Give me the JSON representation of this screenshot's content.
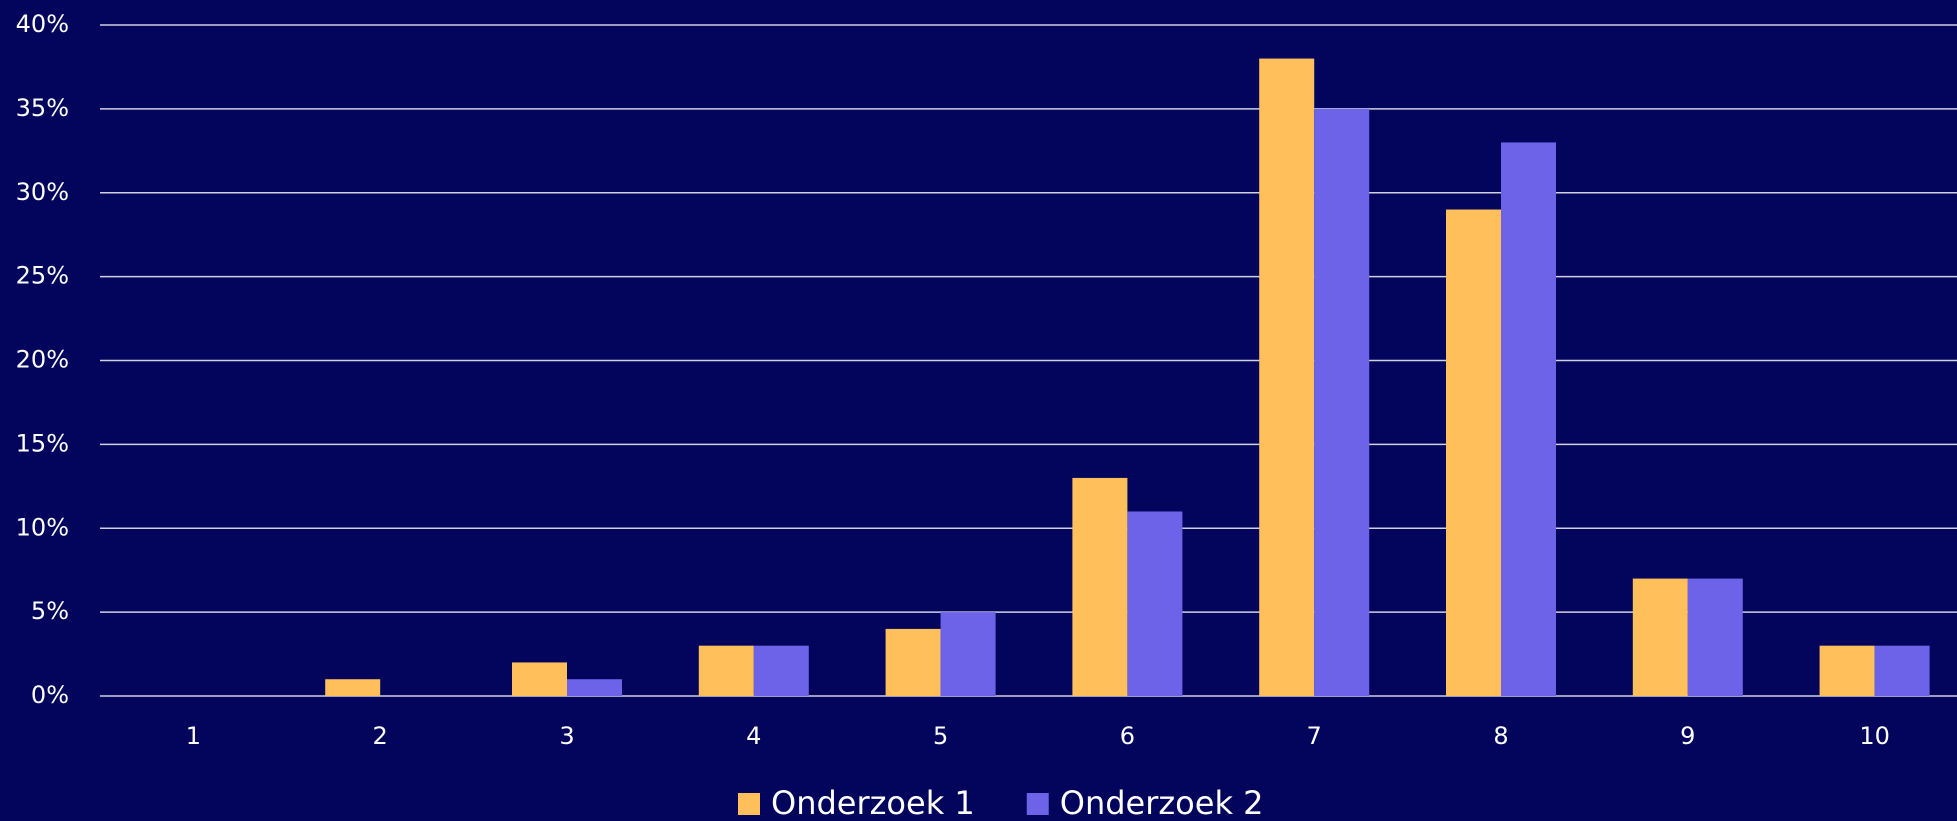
{
  "chart_data": {
    "type": "bar",
    "categories": [
      "1",
      "2",
      "3",
      "4",
      "5",
      "6",
      "7",
      "8",
      "9",
      "10"
    ],
    "series": [
      {
        "name": "Onderzoek 1",
        "color": "#ffc05c",
        "values": [
          0,
          1,
          2,
          3,
          4,
          13,
          38,
          29,
          7,
          3
        ]
      },
      {
        "name": "Onderzoek 2",
        "color": "#6c63e8",
        "values": [
          0,
          0,
          1,
          3,
          5,
          11,
          35,
          33,
          7,
          3
        ]
      }
    ],
    "ylim": [
      0,
      40
    ],
    "yticks": [
      {
        "value": 0,
        "label": "0%"
      },
      {
        "value": 5,
        "label": "5%"
      },
      {
        "value": 10,
        "label": "10%"
      },
      {
        "value": 15,
        "label": "15%"
      },
      {
        "value": 20,
        "label": "20%"
      },
      {
        "value": 25,
        "label": "25%"
      },
      {
        "value": 30,
        "label": "30%"
      },
      {
        "value": 35,
        "label": "35%"
      },
      {
        "value": 40,
        "label": "40%"
      }
    ],
    "grid": true,
    "legend": "bottom"
  }
}
